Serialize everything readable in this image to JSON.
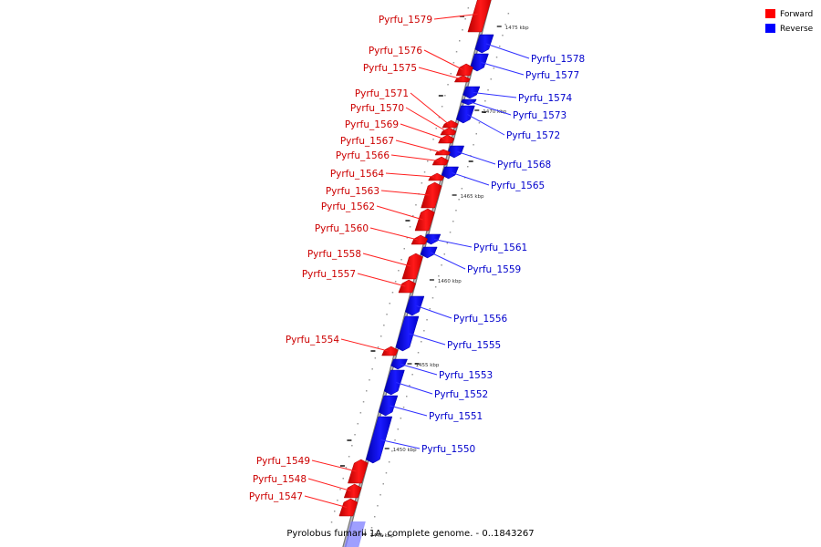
{
  "legend": {
    "forward": {
      "label": "Forward",
      "color": "#ff0000"
    },
    "reverse": {
      "label": "Reverse",
      "color": "#0000ff"
    }
  },
  "caption": "Pyrolobus fumarii 1A, complete genome. - 0..1843267",
  "genes": [
    {
      "name": "Pyrfu_1579",
      "strand": "forward"
    },
    {
      "name": "Pyrfu_1578",
      "strand": "reverse"
    },
    {
      "name": "Pyrfu_1577",
      "strand": "reverse"
    },
    {
      "name": "Pyrfu_1576",
      "strand": "forward"
    },
    {
      "name": "Pyrfu_1575",
      "strand": "forward"
    },
    {
      "name": "Pyrfu_1574",
      "strand": "reverse"
    },
    {
      "name": "Pyrfu_1573",
      "strand": "reverse"
    },
    {
      "name": "Pyrfu_1572",
      "strand": "reverse"
    },
    {
      "name": "Pyrfu_1571",
      "strand": "forward"
    },
    {
      "name": "Pyrfu_1570",
      "strand": "forward"
    },
    {
      "name": "Pyrfu_1569",
      "strand": "forward"
    },
    {
      "name": "Pyrfu_1568",
      "strand": "reverse"
    },
    {
      "name": "Pyrfu_1567",
      "strand": "forward"
    },
    {
      "name": "Pyrfu_1566",
      "strand": "forward"
    },
    {
      "name": "Pyrfu_1565",
      "strand": "reverse"
    },
    {
      "name": "Pyrfu_1564",
      "strand": "forward"
    },
    {
      "name": "Pyrfu_1563",
      "strand": "forward"
    },
    {
      "name": "Pyrfu_1562",
      "strand": "forward"
    },
    {
      "name": "Pyrfu_1561",
      "strand": "reverse"
    },
    {
      "name": "Pyrfu_1560",
      "strand": "forward"
    },
    {
      "name": "Pyrfu_1559",
      "strand": "reverse"
    },
    {
      "name": "Pyrfu_1558",
      "strand": "forward"
    },
    {
      "name": "Pyrfu_1557",
      "strand": "forward"
    },
    {
      "name": "Pyrfu_1556",
      "strand": "reverse"
    },
    {
      "name": "Pyrfu_1555",
      "strand": "reverse"
    },
    {
      "name": "Pyrfu_1554",
      "strand": "forward"
    },
    {
      "name": "Pyrfu_1553",
      "strand": "reverse"
    },
    {
      "name": "Pyrfu_1552",
      "strand": "reverse"
    },
    {
      "name": "Pyrfu_1551",
      "strand": "reverse"
    },
    {
      "name": "Pyrfu_1550",
      "strand": "reverse"
    },
    {
      "name": "Pyrfu_1549",
      "strand": "forward"
    },
    {
      "name": "Pyrfu_1548",
      "strand": "forward"
    },
    {
      "name": "Pyrfu_1547",
      "strand": "forward"
    }
  ],
  "ticks": [
    "1475 kbp",
    "1470 kbp",
    "1465 kbp",
    "1460 kbp",
    "1455 kbp",
    "1450 kbp",
    "1445 kbp"
  ]
}
